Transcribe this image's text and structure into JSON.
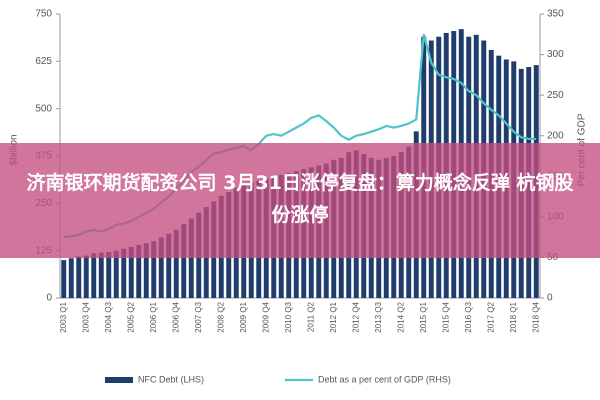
{
  "chart_data": {
    "type": "bar-line",
    "ylabel": "$billion",
    "y2label": "Per cent of GDP",
    "categories": [
      "2003 Q1",
      null,
      null,
      "2003 Q4",
      null,
      null,
      "2004 Q3",
      null,
      null,
      "2005 Q2",
      null,
      null,
      "2006 Q1",
      null,
      null,
      "2006 Q4",
      null,
      null,
      "2007 Q3",
      null,
      null,
      "2008 Q2",
      null,
      null,
      "2009 Q1",
      null,
      null,
      "2009 Q4",
      null,
      null,
      "2010 Q3",
      null,
      null,
      "2011 Q2",
      null,
      null,
      "2012 Q1",
      null,
      null,
      "2012 Q4",
      null,
      null,
      "2013 Q3",
      null,
      null,
      "2014 Q2",
      null,
      null,
      "2015 Q1",
      null,
      null,
      "2015 Q4",
      null,
      null,
      "2016 Q3",
      null,
      null,
      "2017 Q2",
      null,
      null,
      "2018 Q1",
      null,
      null,
      "2018 Q4"
    ],
    "series": [
      {
        "name": "NFC Debt (LHS)",
        "color": "#1f3d6b",
        "axis": "y",
        "values": [
          100,
          105,
          110,
          112,
          118,
          120,
          122,
          125,
          130,
          135,
          140,
          145,
          150,
          160,
          170,
          180,
          195,
          210,
          225,
          240,
          255,
          270,
          280,
          290,
          300,
          305,
          310,
          315,
          320,
          325,
          330,
          335,
          340,
          345,
          350,
          355,
          365,
          370,
          385,
          390,
          380,
          370,
          365,
          370,
          375,
          385,
          400,
          440,
          690,
          680,
          690,
          700,
          705,
          710,
          690,
          695,
          680,
          655,
          640,
          630,
          625,
          605,
          610,
          615
        ]
      },
      {
        "name": "Debt as a per cent of GDP (RHS)",
        "color": "#4fc3c8",
        "axis": "y2",
        "values": [
          75,
          76,
          78,
          82,
          84,
          82,
          85,
          90,
          92,
          95,
          100,
          105,
          110,
          118,
          125,
          135,
          145,
          155,
          162,
          170,
          178,
          180,
          183,
          185,
          187,
          182,
          190,
          200,
          202,
          200,
          205,
          210,
          215,
          222,
          225,
          218,
          210,
          200,
          195,
          200,
          202,
          205,
          208,
          212,
          210,
          212,
          215,
          220,
          325,
          290,
          275,
          272,
          270,
          265,
          255,
          250,
          240,
          232,
          225,
          215,
          205,
          198,
          196,
          196
        ]
      }
    ],
    "ylim": [
      0,
      750
    ],
    "yticks": [
      0,
      125,
      250,
      375,
      500,
      625,
      750
    ],
    "y2lim": [
      0,
      350
    ],
    "y2ticks": [
      0,
      50,
      100,
      150,
      200,
      250,
      300,
      350
    ]
  },
  "banner": {
    "text": "济南银环期货配资公司 3月31日涨停复盘：算力概念反弹 杭钢股份涨停"
  }
}
